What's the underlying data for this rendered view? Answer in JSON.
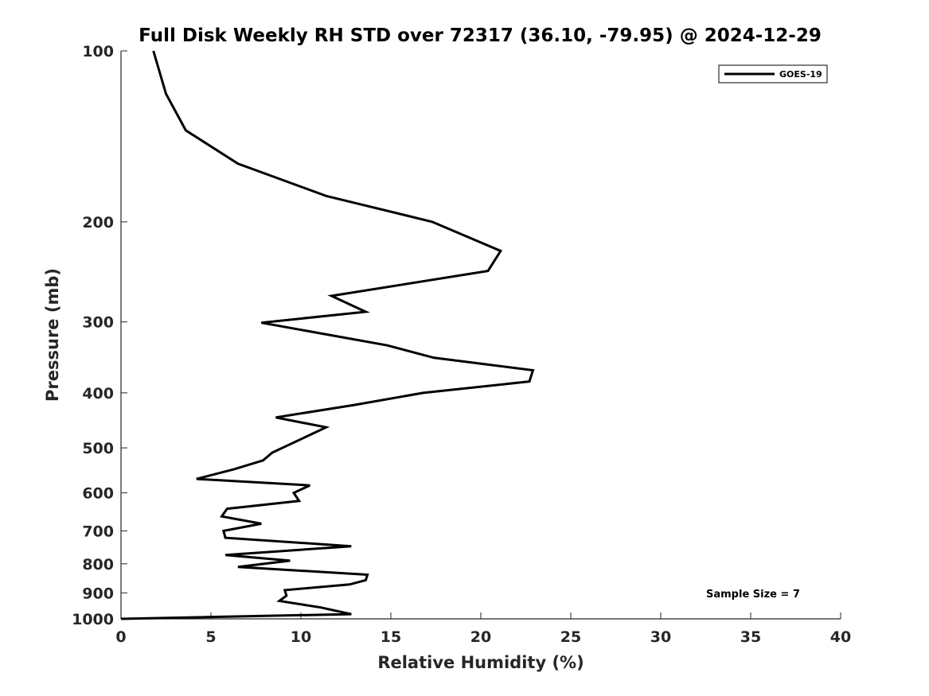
{
  "chart_data": {
    "type": "line",
    "title": "Full Disk Weekly RH STD over 72317 (36.10, -79.95) @ 2024-12-29",
    "xlabel": "Relative Humidity (%)",
    "ylabel": "Pressure (mb)",
    "xlim": [
      0,
      40
    ],
    "ylim": [
      100,
      1000
    ],
    "y_scale": "log",
    "y_reversed": true,
    "x_ticks": [
      "0",
      "5",
      "10",
      "15",
      "20",
      "25",
      "30",
      "35",
      "40"
    ],
    "y_ticks": [
      "100",
      "200",
      "300",
      "400",
      "500",
      "600",
      "700",
      "800",
      "900",
      "1000"
    ],
    "grid": false,
    "legend_position": "top-right",
    "annotation": "Sample Size = 7",
    "color": "#000000",
    "series": [
      {
        "name": "GOES-19",
        "points": [
          [
            1.8,
            100
          ],
          [
            2.5,
            119
          ],
          [
            3.6,
            138
          ],
          [
            6.5,
            158
          ],
          [
            11.4,
            180
          ],
          [
            17.3,
            200
          ],
          [
            21.1,
            225
          ],
          [
            20.4,
            244
          ],
          [
            11.7,
            270
          ],
          [
            13.6,
            288
          ],
          [
            7.8,
            301
          ],
          [
            14.8,
            330
          ],
          [
            17.4,
            347
          ],
          [
            22.9,
            365
          ],
          [
            22.7,
            382
          ],
          [
            16.8,
            400
          ],
          [
            13.0,
            420
          ],
          [
            8.6,
            442
          ],
          [
            11.4,
            460
          ],
          [
            8.4,
            510
          ],
          [
            7.9,
            526
          ],
          [
            6.3,
            545
          ],
          [
            4.2,
            567
          ],
          [
            10.5,
            582
          ],
          [
            9.6,
            600
          ],
          [
            9.9,
            620
          ],
          [
            5.9,
            640
          ],
          [
            5.6,
            660
          ],
          [
            7.8,
            680
          ],
          [
            5.7,
            700
          ],
          [
            5.8,
            720
          ],
          [
            12.8,
            745
          ],
          [
            5.8,
            772
          ],
          [
            9.4,
            790
          ],
          [
            6.5,
            810
          ],
          [
            13.7,
            836
          ],
          [
            13.6,
            855
          ],
          [
            12.7,
            870
          ],
          [
            9.1,
            890
          ],
          [
            9.2,
            910
          ],
          [
            8.8,
            930
          ],
          [
            11.1,
            955
          ],
          [
            12.8,
            981
          ],
          [
            0.0,
            1000
          ]
        ]
      }
    ]
  }
}
